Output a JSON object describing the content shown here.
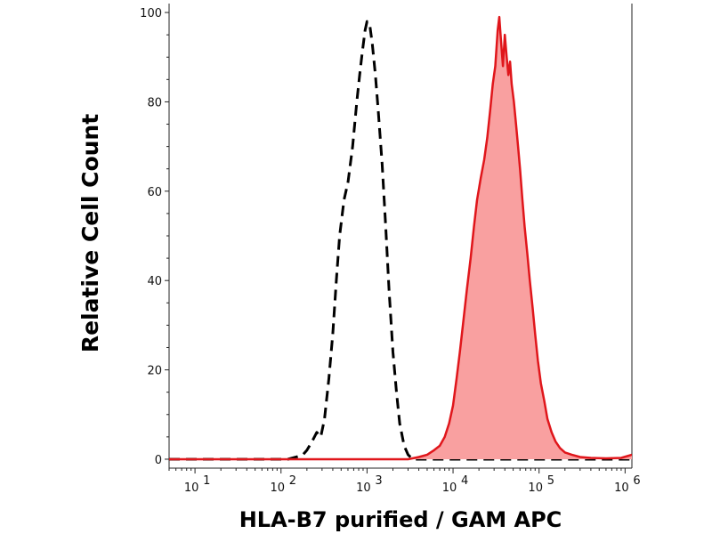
{
  "chart_data": {
    "type": "area",
    "title": "",
    "xlabel": "HLA-B7 purified / GAM APC",
    "ylabel": "Relative Cell Count",
    "x_scale": "log",
    "xlim": [
      5,
      1200000
    ],
    "ylim": [
      -2,
      102
    ],
    "grid": false,
    "legend": "none",
    "x_ticks": [
      {
        "value": 10,
        "base": "10",
        "exp": "1"
      },
      {
        "value": 100,
        "base": "10",
        "exp": "2"
      },
      {
        "value": 1000,
        "base": "10",
        "exp": "3"
      },
      {
        "value": 10000,
        "base": "10",
        "exp": "4"
      },
      {
        "value": 100000,
        "base": "10",
        "exp": "5"
      },
      {
        "value": 1000000,
        "base": "10",
        "exp": "6"
      }
    ],
    "y_ticks": [
      {
        "value": 0,
        "label": "0"
      },
      {
        "value": 20,
        "label": "20"
      },
      {
        "value": 40,
        "label": "40"
      },
      {
        "value": 60,
        "label": "60"
      },
      {
        "value": 80,
        "label": "80"
      },
      {
        "value": 100,
        "label": "100"
      }
    ],
    "series": [
      {
        "style": "dashed-line",
        "color": "#000000",
        "points": [
          [
            5,
            0
          ],
          [
            80,
            0
          ],
          [
            120,
            0
          ],
          [
            150,
            0.5
          ],
          [
            180,
            1
          ],
          [
            200,
            2
          ],
          [
            230,
            4
          ],
          [
            260,
            6
          ],
          [
            290,
            5
          ],
          [
            320,
            9
          ],
          [
            360,
            18
          ],
          [
            400,
            28
          ],
          [
            440,
            40
          ],
          [
            480,
            50
          ],
          [
            540,
            58
          ],
          [
            600,
            62
          ],
          [
            680,
            70
          ],
          [
            760,
            80
          ],
          [
            820,
            86
          ],
          [
            880,
            91
          ],
          [
            950,
            96
          ],
          [
            1000,
            98
          ],
          [
            1080,
            97
          ],
          [
            1150,
            93
          ],
          [
            1250,
            86
          ],
          [
            1350,
            78
          ],
          [
            1500,
            66
          ],
          [
            1650,
            52
          ],
          [
            1800,
            38
          ],
          [
            2000,
            24
          ],
          [
            2200,
            15
          ],
          [
            2400,
            8
          ],
          [
            2700,
            3
          ],
          [
            3000,
            1
          ],
          [
            3400,
            0
          ],
          [
            5000,
            0
          ],
          [
            1200000,
            0
          ]
        ]
      },
      {
        "style": "filled",
        "color": "#e0161b",
        "fill_color": "#f9a0a0",
        "points": [
          [
            5,
            0
          ],
          [
            3000,
            0
          ],
          [
            4000,
            0.5
          ],
          [
            5000,
            1
          ],
          [
            6000,
            2
          ],
          [
            7000,
            3
          ],
          [
            8000,
            5
          ],
          [
            9000,
            8
          ],
          [
            10000,
            12
          ],
          [
            11000,
            18
          ],
          [
            12000,
            24
          ],
          [
            13000,
            30
          ],
          [
            14500,
            38
          ],
          [
            16000,
            45
          ],
          [
            17500,
            52
          ],
          [
            19000,
            58
          ],
          [
            21000,
            63
          ],
          [
            23000,
            67
          ],
          [
            25000,
            72
          ],
          [
            27000,
            78
          ],
          [
            29000,
            84
          ],
          [
            31000,
            88
          ],
          [
            33000,
            96
          ],
          [
            34500,
            99
          ],
          [
            36000,
            94
          ],
          [
            38000,
            88
          ],
          [
            40000,
            95
          ],
          [
            42000,
            90
          ],
          [
            44000,
            86
          ],
          [
            46000,
            89
          ],
          [
            48000,
            84
          ],
          [
            51000,
            80
          ],
          [
            54000,
            75
          ],
          [
            57000,
            70
          ],
          [
            60000,
            65
          ],
          [
            64000,
            58
          ],
          [
            68000,
            52
          ],
          [
            73000,
            46
          ],
          [
            78000,
            40
          ],
          [
            84000,
            34
          ],
          [
            90000,
            28
          ],
          [
            97000,
            22
          ],
          [
            105000,
            17
          ],
          [
            115000,
            13
          ],
          [
            125000,
            9
          ],
          [
            140000,
            6
          ],
          [
            155000,
            4
          ],
          [
            175000,
            2.5
          ],
          [
            200000,
            1.5
          ],
          [
            240000,
            1
          ],
          [
            300000,
            0.5
          ],
          [
            400000,
            0.3
          ],
          [
            600000,
            0.2
          ],
          [
            900000,
            0.3
          ],
          [
            1200000,
            1
          ]
        ]
      }
    ]
  }
}
